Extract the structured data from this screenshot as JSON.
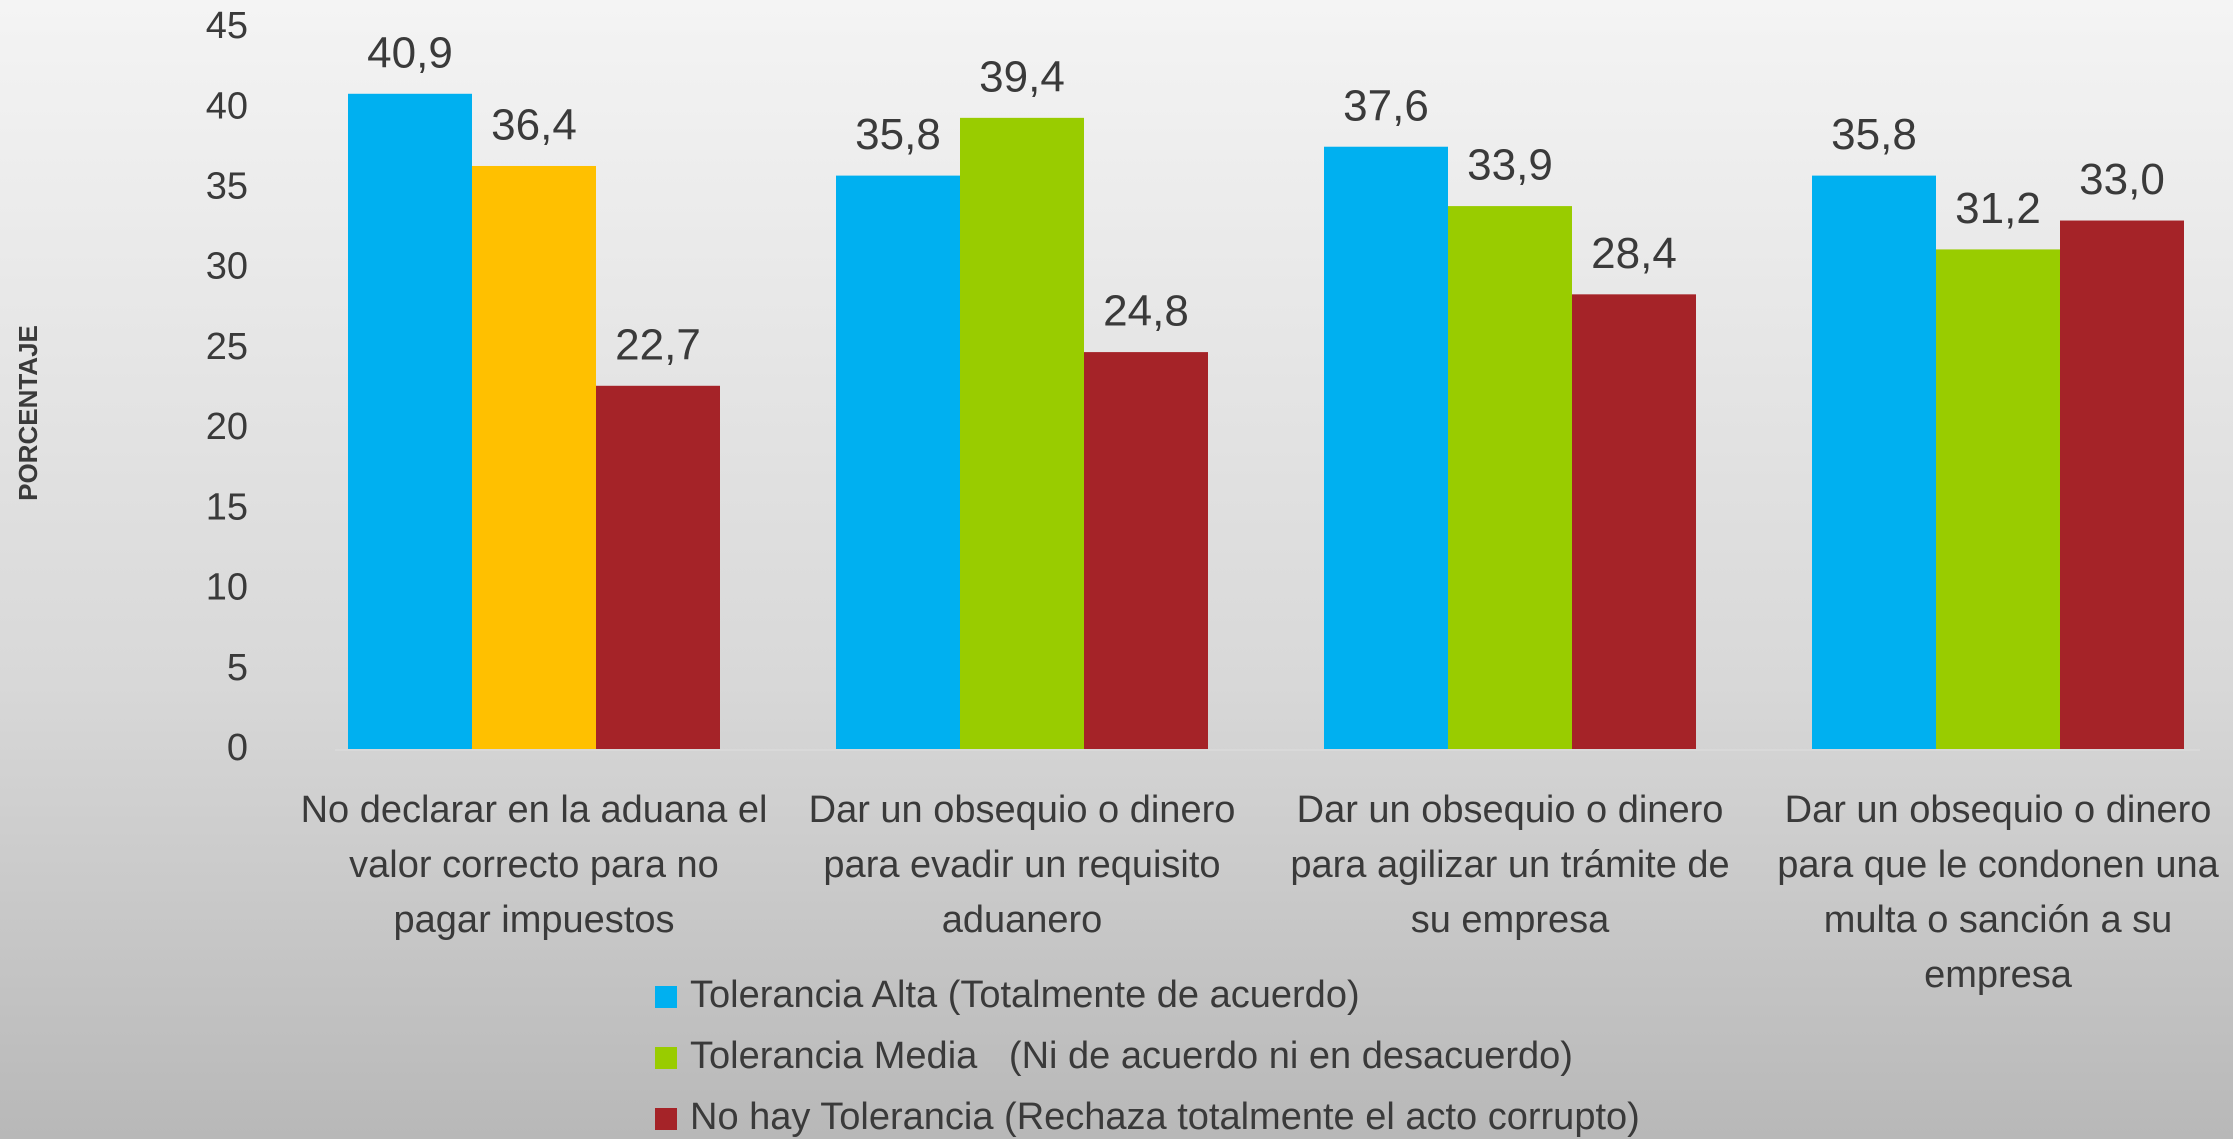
{
  "chart_data": {
    "type": "bar",
    "y_label": "PORCENTAJE",
    "categories": [
      [
        "No declarar en la aduana el",
        "valor correcto para no",
        "pagar impuestos"
      ],
      [
        "Dar un obsequio o dinero",
        "para evadir un requisito",
        "aduanero"
      ],
      [
        "Dar un obsequio o dinero",
        "para agilizar un trámite de",
        "su empresa"
      ],
      [
        "Dar un obsequio o dinero",
        "para que le condonen una",
        "multa o sanción a su",
        "empresa"
      ]
    ],
    "series": [
      {
        "name": "Tolerancia Alta (Totalmente de acuerdo)",
        "color": "#00b0f0",
        "values": [
          40.9,
          35.8,
          37.6,
          35.8
        ],
        "value_labels": [
          "40,9",
          "35,8",
          "37,6",
          "35,8"
        ]
      },
      {
        "name": "Tolerancia Media   (Ni de acuerdo ni en desacuerdo)",
        "color": "#99cc00",
        "colors": [
          "#ffc000",
          "#99cc00",
          "#99cc00",
          "#99cc00"
        ],
        "values": [
          36.4,
          39.4,
          33.9,
          31.2
        ],
        "value_labels": [
          "36,4",
          "39,4",
          "33,9",
          "31,2"
        ]
      },
      {
        "name": "No hay Tolerancia (Rechaza totalmente el acto corrupto)",
        "color": "#a52328",
        "values": [
          22.7,
          24.8,
          28.4,
          33.0
        ],
        "value_labels": [
          "22,7",
          "24,8",
          "28,4",
          "33,0"
        ]
      }
    ],
    "ylim": [
      0,
      45
    ],
    "yticks": [
      0,
      5,
      10,
      15,
      20,
      25,
      30,
      35,
      40,
      45
    ],
    "grid": false
  }
}
